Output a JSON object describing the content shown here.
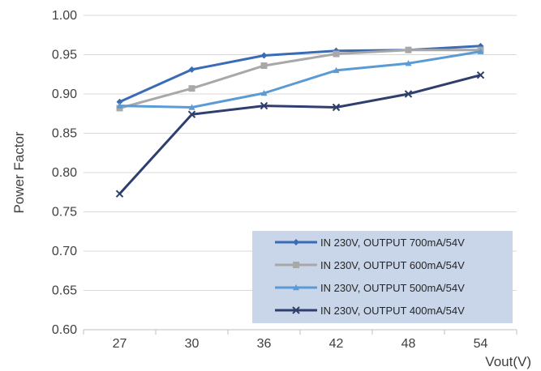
{
  "chart_data": {
    "type": "line",
    "title": "",
    "xlabel": "Vout(V)",
    "ylabel": "Power Factor",
    "categories": [
      "27",
      "30",
      "36",
      "42",
      "48",
      "54"
    ],
    "ylim": [
      0.6,
      1.0
    ],
    "yticks": [
      "0.60",
      "0.65",
      "0.70",
      "0.75",
      "0.80",
      "0.85",
      "0.90",
      "0.95",
      "1.00"
    ],
    "grid": "horizontal",
    "legend_position": "bottom-right",
    "series": [
      {
        "name": "IN 230V, OUTPUT 700mA/54V",
        "color": "#3a6bb5",
        "marker": "diamond",
        "values": [
          0.89,
          0.931,
          0.949,
          0.955,
          0.956,
          0.961
        ]
      },
      {
        "name": "IN 230V, OUTPUT 600mA/54V",
        "color": "#a8a8a8",
        "marker": "square",
        "values": [
          0.882,
          0.907,
          0.936,
          0.951,
          0.956,
          0.956
        ]
      },
      {
        "name": "IN 230V, OUTPUT 500mA/54V",
        "color": "#5b9bd5",
        "marker": "triangle",
        "values": [
          0.885,
          0.883,
          0.901,
          0.93,
          0.939,
          0.954
        ]
      },
      {
        "name": "IN 230V, OUTPUT 400mA/54V",
        "color": "#2e3f6e",
        "marker": "x",
        "values": [
          0.773,
          0.874,
          0.885,
          0.883,
          0.9,
          0.924
        ]
      }
    ]
  }
}
